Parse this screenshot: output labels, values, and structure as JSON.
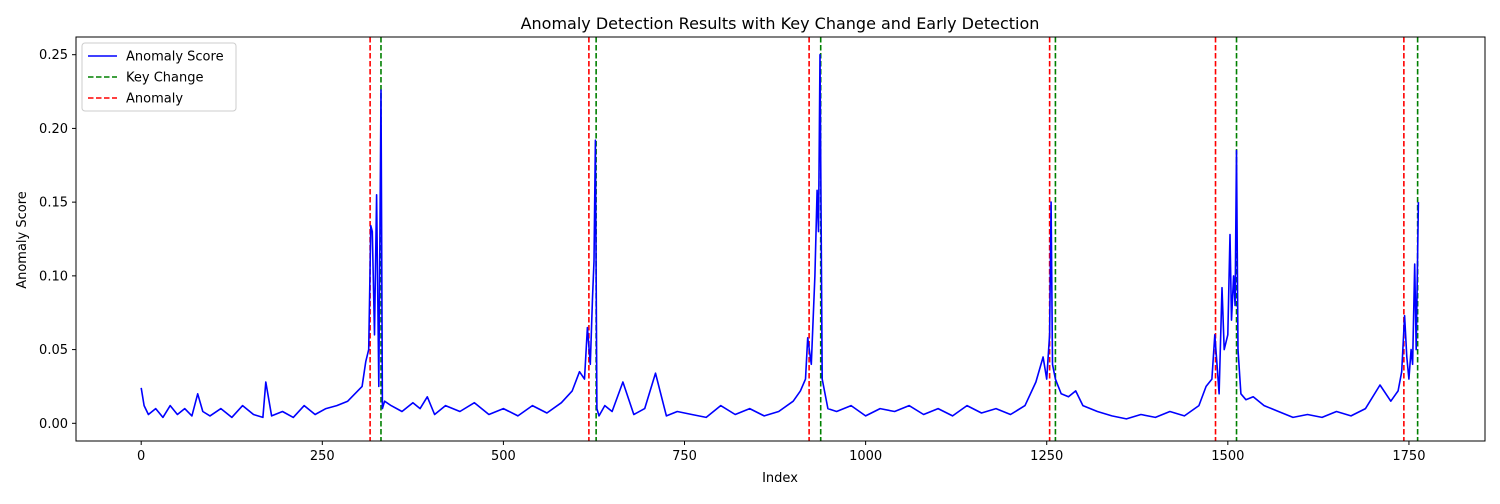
{
  "chart_data": {
    "type": "line",
    "title": "Anomaly Detection Results with Key Change and Early Detection",
    "xlabel": "Index",
    "ylabel": "Anomaly Score",
    "xlim": [
      -90,
      1855
    ],
    "ylim": [
      -0.012,
      0.262
    ],
    "xticks": [
      0,
      250,
      500,
      750,
      1000,
      1250,
      1500,
      1750
    ],
    "xtick_labels": [
      "0",
      "250",
      "500",
      "750",
      "1000",
      "1250",
      "1500",
      "1750"
    ],
    "yticks": [
      0.0,
      0.05,
      0.1,
      0.15,
      0.2,
      0.25
    ],
    "ytick_labels": [
      "0.00",
      "0.05",
      "0.10",
      "0.15",
      "0.20",
      "0.25"
    ],
    "legend_position": "top-left",
    "grid": false,
    "series": [
      {
        "name": "Anomaly Score",
        "color": "#0000ff",
        "style": "solid",
        "x": [
          0,
          4,
          10,
          20,
          30,
          40,
          50,
          60,
          70,
          78,
          85,
          95,
          110,
          125,
          140,
          155,
          168,
          172,
          180,
          195,
          210,
          225,
          240,
          255,
          270,
          285,
          295,
          305,
          310,
          314,
          317,
          319,
          322,
          325,
          328,
          331,
          333,
          336,
          345,
          360,
          375,
          385,
          395,
          405,
          420,
          440,
          460,
          480,
          500,
          520,
          540,
          560,
          580,
          595,
          605,
          612,
          616,
          620,
          623,
          625,
          627,
          629,
          632,
          640,
          650,
          665,
          680,
          695,
          710,
          725,
          740,
          760,
          780,
          800,
          820,
          840,
          860,
          880,
          900,
          910,
          917,
          920,
          925,
          930,
          933,
          935,
          937,
          940,
          948,
          960,
          980,
          1000,
          1020,
          1040,
          1060,
          1080,
          1100,
          1120,
          1140,
          1160,
          1180,
          1200,
          1220,
          1235,
          1245,
          1250,
          1254,
          1256,
          1258,
          1262,
          1270,
          1280,
          1290,
          1300,
          1320,
          1340,
          1360,
          1380,
          1400,
          1420,
          1440,
          1460,
          1470,
          1478,
          1482,
          1485,
          1488,
          1492,
          1495,
          1500,
          1503,
          1505,
          1508,
          1510,
          1512,
          1514,
          1518,
          1525,
          1535,
          1550,
          1570,
          1590,
          1610,
          1630,
          1650,
          1670,
          1690,
          1710,
          1725,
          1735,
          1740,
          1744,
          1747,
          1750,
          1753,
          1755,
          1758,
          1760,
          1763
        ],
        "y": [
          0.024,
          0.012,
          0.006,
          0.01,
          0.004,
          0.012,
          0.006,
          0.01,
          0.005,
          0.02,
          0.008,
          0.005,
          0.01,
          0.004,
          0.012,
          0.006,
          0.004,
          0.028,
          0.005,
          0.008,
          0.004,
          0.012,
          0.006,
          0.01,
          0.012,
          0.015,
          0.02,
          0.025,
          0.042,
          0.05,
          0.134,
          0.13,
          0.06,
          0.155,
          0.025,
          0.226,
          0.01,
          0.015,
          0.012,
          0.008,
          0.014,
          0.01,
          0.018,
          0.006,
          0.012,
          0.008,
          0.014,
          0.006,
          0.01,
          0.005,
          0.012,
          0.007,
          0.014,
          0.022,
          0.035,
          0.03,
          0.065,
          0.04,
          0.085,
          0.11,
          0.192,
          0.01,
          0.005,
          0.012,
          0.008,
          0.028,
          0.006,
          0.01,
          0.034,
          0.005,
          0.008,
          0.006,
          0.004,
          0.012,
          0.006,
          0.01,
          0.005,
          0.008,
          0.015,
          0.022,
          0.03,
          0.058,
          0.04,
          0.1,
          0.158,
          0.13,
          0.25,
          0.03,
          0.01,
          0.008,
          0.012,
          0.005,
          0.01,
          0.008,
          0.012,
          0.006,
          0.01,
          0.005,
          0.012,
          0.007,
          0.01,
          0.006,
          0.012,
          0.028,
          0.045,
          0.03,
          0.06,
          0.15,
          0.04,
          0.03,
          0.02,
          0.018,
          0.022,
          0.012,
          0.008,
          0.005,
          0.003,
          0.006,
          0.004,
          0.008,
          0.005,
          0.012,
          0.025,
          0.03,
          0.06,
          0.04,
          0.02,
          0.092,
          0.05,
          0.06,
          0.128,
          0.07,
          0.1,
          0.08,
          0.185,
          0.05,
          0.02,
          0.016,
          0.018,
          0.012,
          0.008,
          0.004,
          0.006,
          0.004,
          0.008,
          0.005,
          0.01,
          0.026,
          0.015,
          0.022,
          0.035,
          0.073,
          0.045,
          0.03,
          0.05,
          0.04,
          0.108,
          0.05,
          0.15
        ]
      },
      {
        "name": "Key Change",
        "color": "#008000",
        "style": "dashed",
        "vlines": [
          331,
          628,
          938,
          1262,
          1512,
          1762
        ]
      },
      {
        "name": "Anomaly",
        "color": "#ff0000",
        "style": "dashed",
        "vlines": [
          316,
          618,
          922,
          1254,
          1483,
          1743
        ]
      }
    ]
  }
}
